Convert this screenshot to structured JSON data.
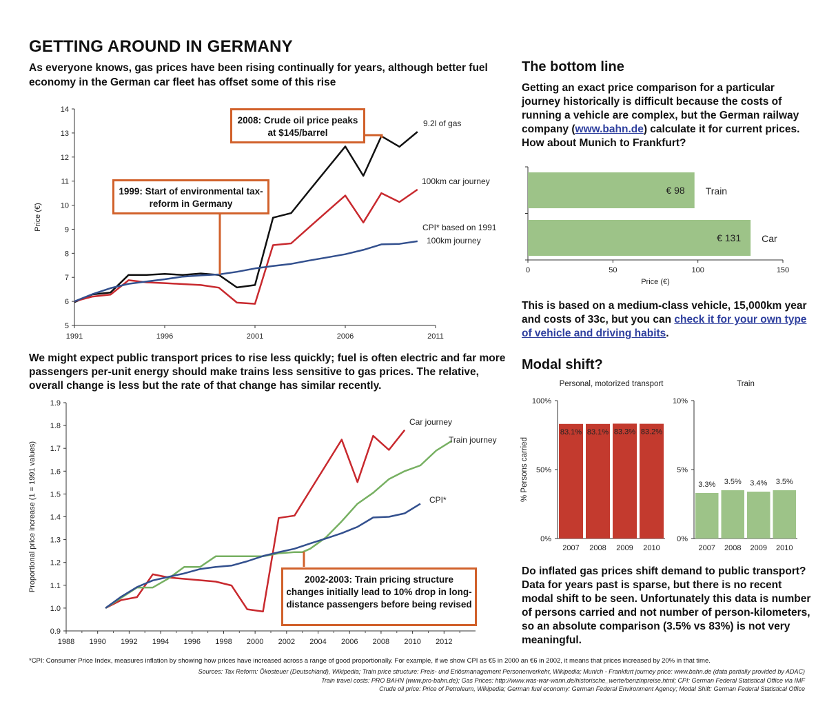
{
  "header": {
    "title": "GETTING AROUND IN GERMANY",
    "lede": "As everyone knows, gas prices have been rising continually for years, although better fuel economy in the German car fleet has offset some of this rise"
  },
  "middle_text": "We might expect public transport prices to rise less quickly; fuel is often electric and far more passengers per-unit energy should make trains less sensitive to gas prices. The relative, overall change is less but the rate of that change has similar recently.",
  "bottom_line": {
    "heading": "The bottom line",
    "para1_pre": "Getting an exact price comparison for a particular journey historically is difficult because the costs of running a vehicle are complex, but the German railway company (",
    "para1_link": "www.bahn.de",
    "para1_post": ") calculate it for current prices. How about Munich to Frankfurt?",
    "para2_pre": "This is based on a medium-class vehicle, 15,000km year and costs of 33c, but you can ",
    "para2_link": "check it for your own type of vehicle and driving habits",
    "para2_post": "."
  },
  "modal_shift": {
    "heading": "Modal shift?",
    "para": "Do inflated gas prices shift demand to public transport? Data for years past is sparse, but there is no recent modal shift to be seen.  Unfortunately this data is number of persons carried and not number of person-kilometers, so an absolute comparison (3.5% vs 83%) is not very meaningful."
  },
  "callouts": {
    "c1999": "1999: Start of environmental tax-reform in Germany",
    "c2008": "2008: Crude oil price peaks at $145/barrel",
    "c2002": "2002-2003: Train pricing structure changes initially lead to 10% drop in long-distance passengers before being revised"
  },
  "footnote": "*CPI: Consumer Price Index, measures inflation by showing how prices have increased across a range of good proportionally. For example, if we show CPI as €5 in 2000 an €6 in 2002, it means that prices increased by 20% in that time.",
  "sources": [
    "Sources:  Tax Reform: Ökosteuer (Deutschland), Wikipedia; Train price structure: Preis- und Erlösmanagement Personenverkehr, Wikipedia; Munich - Frankfurt journey price: www.bahn.de (data partially provided by ADAC)",
    "Train travel costs: PRO BAHN (www.pro-bahn.de); Gas Prices: http://www.was-war-wann.de/historische_werte/benzinpreise.html; CPI: German Federal Statistical Office via IMF",
    "Crude oil price: Price of Petroleum, Wikipedia; German fuel economy: German Federal Environment Agency; Modal Shift: German Federal Statistical Office"
  ],
  "colors": {
    "black": "#111111",
    "red": "#c8292e",
    "blue": "#33508e",
    "green": "#77b062",
    "bar_green": "#9dc388",
    "bar_red": "#c33a2e",
    "callout": "#d1612b"
  },
  "chart_data": [
    {
      "id": "price",
      "type": "line",
      "title": "",
      "xlabel": "",
      "ylabel": "Price (€)",
      "xlim": [
        1991,
        2011
      ],
      "ylim": [
        5,
        14
      ],
      "xticks": [
        1991,
        1996,
        2001,
        2006,
        2011
      ],
      "yticks": [
        5,
        6,
        7,
        8,
        9,
        10,
        11,
        12,
        13,
        14
      ],
      "grid": false,
      "series": [
        {
          "name": "9.2l of gas",
          "color": "#111111",
          "x": [
            1991,
            1992,
            1993,
            1994,
            1995,
            1996,
            1997,
            1998,
            1999,
            2000,
            2001,
            2002,
            2003,
            2004,
            2005,
            2006,
            2007,
            2008,
            2009,
            2010
          ],
          "y": [
            5.97,
            6.29,
            6.37,
            7.1,
            7.1,
            7.14,
            7.1,
            7.16,
            7.1,
            6.58,
            6.68,
            9.48,
            9.67,
            10.6,
            11.52,
            12.44,
            11.22,
            12.87,
            12.43,
            13.05
          ]
        },
        {
          "name": "100km car journey",
          "color": "#c8292e",
          "x": [
            1991,
            1992,
            1993,
            1994,
            1995,
            1996,
            1997,
            1998,
            1999,
            2000,
            2001,
            2002,
            2003,
            2004,
            2005,
            2006,
            2007,
            2008,
            2009,
            2010
          ],
          "y": [
            6.0,
            6.2,
            6.28,
            6.88,
            6.79,
            6.76,
            6.72,
            6.68,
            6.57,
            5.95,
            5.9,
            8.34,
            8.41,
            9.08,
            9.74,
            10.4,
            9.28,
            10.5,
            10.13,
            10.65
          ]
        },
        {
          "name": "CPI* based on 1991 100km journey",
          "color": "#33508e",
          "x": [
            1991,
            1992,
            1993,
            1994,
            1995,
            1996,
            1997,
            1998,
            1999,
            2000,
            2001,
            2002,
            2003,
            2004,
            2005,
            2006,
            2007,
            2008,
            2009,
            2010
          ],
          "y": [
            6.0,
            6.3,
            6.55,
            6.73,
            6.83,
            6.92,
            7.03,
            7.08,
            7.12,
            7.23,
            7.37,
            7.47,
            7.56,
            7.7,
            7.83,
            7.96,
            8.14,
            8.37,
            8.39,
            8.5
          ]
        }
      ]
    },
    {
      "id": "proportional",
      "type": "line",
      "title": "",
      "xlabel": "",
      "ylabel": "Proportional price increase (1 = 1991 values)",
      "xlim": [
        1988,
        2014
      ],
      "ylim": [
        0.9,
        1.9
      ],
      "xticks": [
        1988,
        1990,
        1992,
        1994,
        1996,
        1998,
        2000,
        2002,
        2004,
        2006,
        2008,
        2010,
        2012
      ],
      "yticks": [
        0.9,
        1.0,
        1.1,
        1.2,
        1.3,
        1.4,
        1.5,
        1.6,
        1.7,
        1.8,
        1.9
      ],
      "grid": false,
      "series": [
        {
          "name": "Car journey",
          "color": "#c8292e",
          "x": [
            1990.5,
            1991.5,
            1992.5,
            1993.5,
            1994.5,
            1995.5,
            1996.5,
            1997.5,
            1998.5,
            1999.5,
            2000.5,
            2001.5,
            2002.5,
            2003.5,
            2004.5,
            2005.5,
            2006.5,
            2007.5,
            2008.5,
            2009.5
          ],
          "y": [
            1.0,
            1.035,
            1.048,
            1.148,
            1.134,
            1.128,
            1.122,
            1.116,
            1.099,
            0.995,
            0.985,
            1.395,
            1.405,
            1.516,
            1.627,
            1.738,
            1.552,
            1.755,
            1.693,
            1.78
          ]
        },
        {
          "name": "Train journey",
          "color": "#77b062",
          "x": [
            1990.5,
            1991.5,
            1992.5,
            1993.5,
            1994.5,
            1995.5,
            1996.5,
            1997.5,
            1998.5,
            1999.5,
            2000.5,
            2001.5,
            2002.5,
            2003,
            2003.5,
            2004.5,
            2005.5,
            2006.5,
            2007.5,
            2008.5,
            2009.5,
            2010.5,
            2011.5,
            2012.5
          ],
          "y": [
            1.0,
            1.045,
            1.09,
            1.09,
            1.13,
            1.18,
            1.18,
            1.227,
            1.227,
            1.227,
            1.227,
            1.24,
            1.245,
            1.245,
            1.26,
            1.31,
            1.38,
            1.457,
            1.505,
            1.565,
            1.6,
            1.625,
            1.69,
            1.733
          ]
        },
        {
          "name": "CPI*",
          "color": "#33508e",
          "x": [
            1990.5,
            1991.5,
            1992.5,
            1993.5,
            1994.5,
            1995.5,
            1996.5,
            1997.5,
            1998.5,
            1999.5,
            2000.5,
            2001.5,
            2002.5,
            2003.5,
            2004.5,
            2005.5,
            2006.5,
            2007.5,
            2008.5,
            2009.5,
            2010.5
          ],
          "y": [
            1.0,
            1.05,
            1.092,
            1.121,
            1.137,
            1.152,
            1.171,
            1.18,
            1.186,
            1.205,
            1.228,
            1.245,
            1.26,
            1.283,
            1.305,
            1.328,
            1.356,
            1.397,
            1.4,
            1.415,
            1.457
          ]
        }
      ]
    },
    {
      "id": "journey",
      "type": "bar",
      "orientation": "horizontal",
      "xlabel": "Price (€)",
      "xlim": [
        0,
        150
      ],
      "xticks": [
        0,
        50,
        100,
        150
      ],
      "categories": [
        "Train",
        "Car"
      ],
      "values": [
        98,
        131
      ],
      "value_labels": [
        "€ 98",
        "€ 131"
      ]
    },
    {
      "id": "modal_personal",
      "type": "bar",
      "title": "Personal, motorized transport",
      "ylabel": "% Persons carried",
      "ylim": [
        0,
        100
      ],
      "yticks": [
        "0%",
        "50%",
        "100%"
      ],
      "categories": [
        "2007",
        "2008",
        "2009",
        "2010"
      ],
      "values": [
        83.1,
        83.1,
        83.3,
        83.2
      ],
      "value_labels": [
        "83.1%",
        "83.1%",
        "83.3%",
        "83.2%"
      ]
    },
    {
      "id": "modal_train",
      "type": "bar",
      "title": "Train",
      "ylim": [
        0,
        10
      ],
      "yticks": [
        "0%",
        "5%",
        "10%"
      ],
      "categories": [
        "2007",
        "2008",
        "2009",
        "2010"
      ],
      "values": [
        3.3,
        3.5,
        3.4,
        3.5
      ],
      "value_labels": [
        "3.3%",
        "3.5%",
        "3.4%",
        "3.5%"
      ]
    }
  ]
}
